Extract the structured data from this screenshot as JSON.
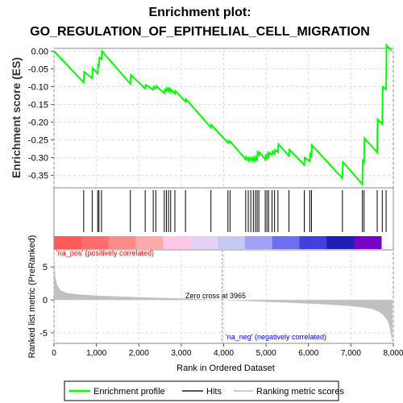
{
  "chart_data": {
    "type": "line",
    "title_line1": "Enrichment plot:",
    "title_line2": "GO_REGULATION_OF_EPITHELIAL_CELL_MIGRATION",
    "x_range": [
      0,
      8000
    ],
    "x_ticks": [
      0,
      1000,
      2000,
      3000,
      4000,
      5000,
      6000,
      7000,
      8000
    ],
    "x_tick_labels": [
      "0",
      "1,000",
      "2,000",
      "3,000",
      "4,000",
      "5,000",
      "6,000",
      "7,000",
      "8,000"
    ],
    "xlabel": "Rank in Ordered Dataset",
    "top_panel": {
      "ylabel": "Enrichment score (ES)",
      "ylim": [
        -0.385,
        0.008
      ],
      "y_ticks": [
        0.0,
        -0.05,
        -0.1,
        -0.15,
        -0.2,
        -0.25,
        -0.3,
        -0.35
      ],
      "y_tick_labels": [
        "0.00",
        "-0.05",
        "-0.10",
        "-0.15",
        "-0.20",
        "-0.25",
        "-0.30",
        "-0.35"
      ],
      "grid": true,
      "series": [
        {
          "name": "Enrichment profile",
          "color": "#00ff00",
          "x": [
            0,
            700,
            710,
            900,
            910,
            1030,
            1040,
            1060,
            1070,
            1120,
            1130,
            1800,
            1810,
            2150,
            2160,
            2340,
            2350,
            2400,
            2410,
            2600,
            2610,
            2650,
            2660,
            2700,
            2710,
            2750,
            2760,
            2850,
            2860,
            3100,
            3110,
            3700,
            3710,
            4100,
            4110,
            4150,
            4160,
            4520,
            4530,
            4580,
            4590,
            4640,
            4650,
            4700,
            4710,
            4750,
            4760,
            4790,
            4800,
            4830,
            4840,
            4980,
            4990,
            5020,
            5030,
            5060,
            5070,
            5140,
            5150,
            5200,
            5210,
            5280,
            5290,
            5540,
            5550,
            5900,
            5910,
            6030,
            6040,
            6070,
            6080,
            6800,
            6810,
            7270,
            7280,
            7310,
            7320,
            7620,
            7630,
            7740,
            7750,
            7830,
            7840,
            7950
          ],
          "y": [
            0.0,
            -0.088,
            -0.058,
            -0.076,
            -0.048,
            -0.063,
            -0.035,
            -0.04,
            -0.018,
            -0.022,
            0.0,
            -0.092,
            -0.067,
            -0.105,
            -0.095,
            -0.108,
            -0.1,
            -0.105,
            -0.098,
            -0.118,
            -0.108,
            -0.112,
            -0.105,
            -0.112,
            -0.102,
            -0.115,
            -0.108,
            -0.12,
            -0.112,
            -0.142,
            -0.135,
            -0.215,
            -0.208,
            -0.258,
            -0.252,
            -0.258,
            -0.255,
            -0.305,
            -0.298,
            -0.308,
            -0.3,
            -0.308,
            -0.3,
            -0.31,
            -0.3,
            -0.308,
            -0.298,
            -0.305,
            -0.285,
            -0.292,
            -0.285,
            -0.305,
            -0.295,
            -0.302,
            -0.29,
            -0.298,
            -0.285,
            -0.292,
            -0.282,
            -0.29,
            -0.278,
            -0.285,
            -0.262,
            -0.295,
            -0.278,
            -0.32,
            -0.3,
            -0.31,
            -0.29,
            -0.295,
            -0.265,
            -0.358,
            -0.312,
            -0.375,
            -0.308,
            -0.312,
            -0.245,
            -0.285,
            -0.192,
            -0.205,
            -0.1,
            -0.108,
            0.017,
            0.002
          ]
        }
      ]
    },
    "hits_panel": {
      "name": "Hits",
      "hit_ranks": [
        700,
        900,
        1030,
        1060,
        1120,
        1800,
        2150,
        2340,
        2400,
        2600,
        2650,
        2700,
        2750,
        2850,
        3100,
        3700,
        4100,
        4150,
        4520,
        4580,
        4640,
        4700,
        4750,
        4790,
        4830,
        4980,
        5020,
        5060,
        5140,
        5200,
        5280,
        5540,
        5900,
        6030,
        6070,
        6800,
        7270,
        7310,
        7620,
        7740,
        7830
      ],
      "heat_colors": [
        "#ff5a5a",
        "#ff6e6e",
        "#ff8a8a",
        "#ffaaaa",
        "#ffc8e6",
        "#e6d2f5",
        "#c8c8f5",
        "#a0a0f5",
        "#6e6ef0",
        "#4040e0",
        "#1e1eb4",
        "#7800c8"
      ]
    },
    "bottom_panel": {
      "name": "Ranking metric scores",
      "ylabel": "Ranked list metric (PreRanked)",
      "ylim": [
        -6.6,
        7.6
      ],
      "y_ticks": [
        5,
        0,
        -5
      ],
      "y_tick_labels": [
        "5",
        "0",
        "-5"
      ],
      "grid": true,
      "curve_x": [
        0,
        30,
        80,
        150,
        300,
        600,
        1000,
        1500,
        2000,
        2500,
        3000,
        3500,
        3965,
        4500,
        5000,
        5500,
        6000,
        6500,
        7000,
        7300,
        7500,
        7650,
        7750,
        7850,
        7900,
        7930,
        7960,
        7980
      ],
      "curve_y": [
        7.5,
        3.5,
        2.2,
        1.5,
        1.05,
        0.8,
        0.65,
        0.52,
        0.42,
        0.32,
        0.22,
        0.12,
        0.0,
        -0.15,
        -0.3,
        -0.42,
        -0.55,
        -0.72,
        -0.95,
        -1.15,
        -1.4,
        -1.75,
        -2.2,
        -3.0,
        -3.8,
        -4.8,
        -5.8,
        -6.3
      ],
      "zero_cross_rank": 3965,
      "zero_cross_label": "Zero cross at 3965",
      "pos_label": "'na_pos' (positively correlated)",
      "neg_label": "'na_neg' (negatively correlated)"
    },
    "legend": {
      "placement": "bottom",
      "items": [
        "Enrichment profile",
        "Hits",
        "Ranking metric scores"
      ]
    },
    "colors": {
      "enrichment_line": "#00ff00",
      "hits": "#000000",
      "metric_fill": "#c0c0c0",
      "pos_label": "#ff0000",
      "neg_label": "#0000ff"
    }
  }
}
